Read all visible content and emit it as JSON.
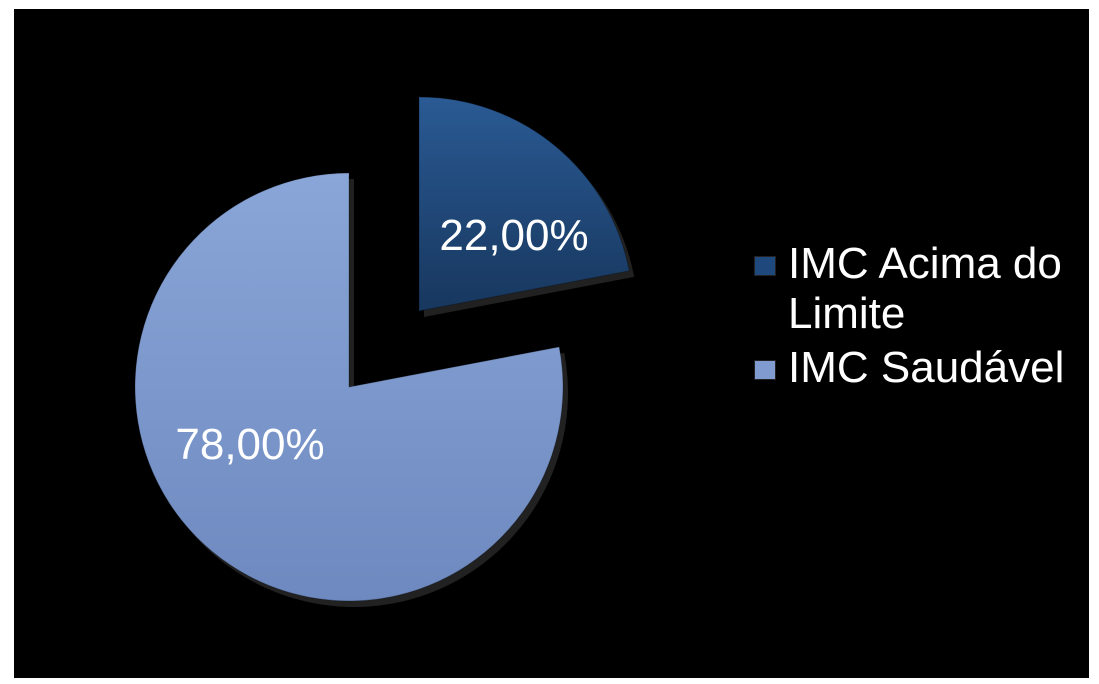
{
  "colors": {
    "background": "#000000",
    "slice_acima": "#1f497d",
    "slice_saudavel": "#7f9bcf",
    "text": "#ffffff"
  },
  "chart_data": {
    "type": "pie",
    "categories": [
      "IMC Acima do Limite",
      "IMC Saudável"
    ],
    "values": [
      22,
      78
    ],
    "value_labels": [
      "22,00%",
      "78,00%"
    ],
    "exploded": [
      true,
      true
    ],
    "legend_position": "right",
    "title": ""
  },
  "legend": {
    "items": [
      {
        "label": "IMC Acima do Limite",
        "color": "#1f497d"
      },
      {
        "label": "IMC Saudável",
        "color": "#7f9bcf"
      }
    ]
  }
}
